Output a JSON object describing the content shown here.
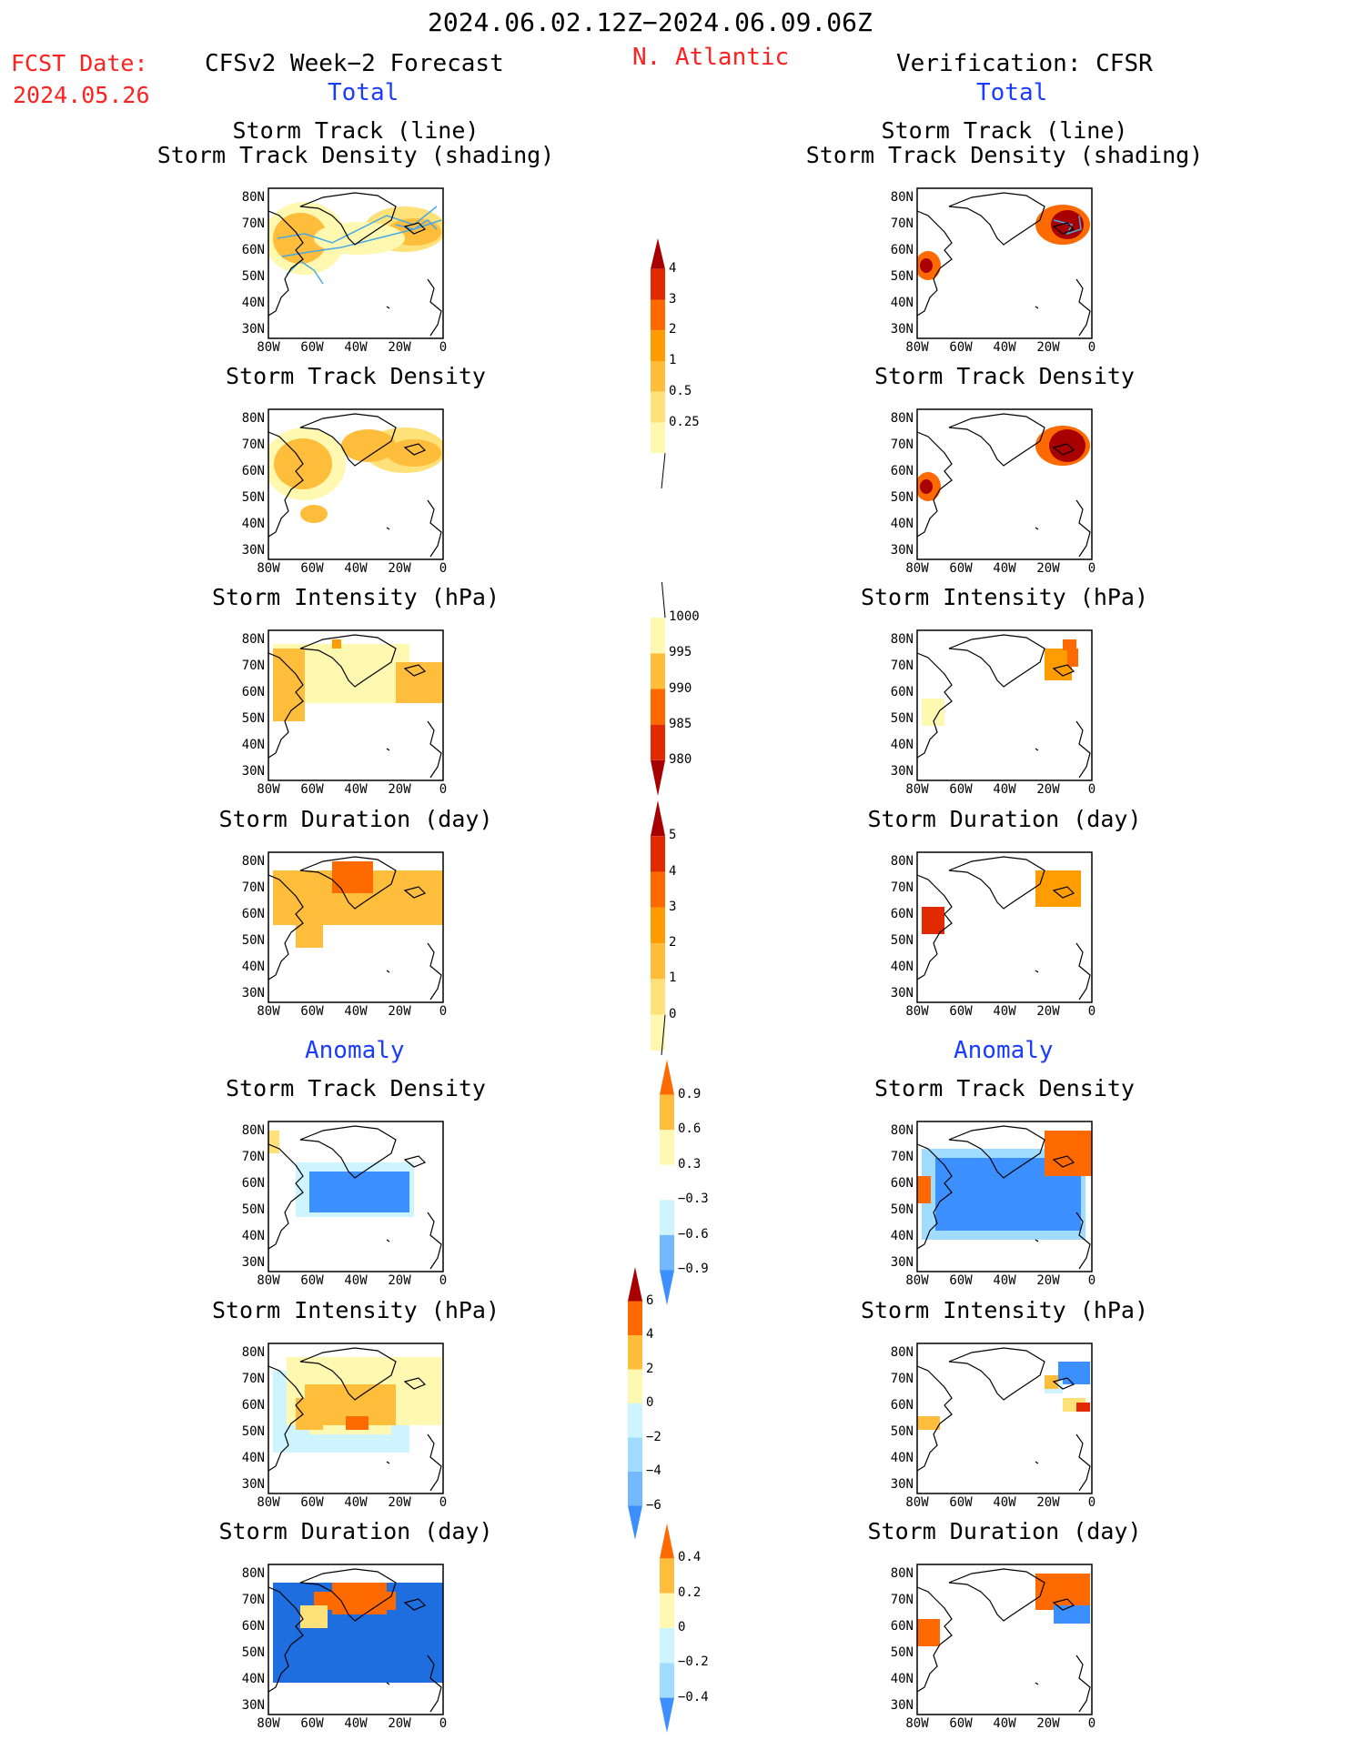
{
  "header": {
    "date_range": "2024.06.02.12Z−2024.06.09.06Z",
    "fcst_label": "FCST Date:",
    "fcst_date": "2024.05.26",
    "left_title": "CFSv2 Week−2 Forecast",
    "region": "N. Atlantic",
    "right_title": "Verification: CFSR",
    "total_left": "Total",
    "total_right": "Total",
    "anomaly_left": "Anomaly",
    "anomaly_right": "Anomaly"
  },
  "panel_titles": {
    "track_l1": "Storm Track (line)",
    "track_l2": "Storm Track Density (shading)",
    "density": "Storm Track Density",
    "intensity": "Storm Intensity (hPa)",
    "duration": "Storm Duration (day)"
  },
  "axes": {
    "lat_labels": [
      "80N",
      "70N",
      "60N",
      "50N",
      "40N",
      "30N"
    ],
    "lon_labels": [
      "80W",
      "60W",
      "40W",
      "20W",
      "0"
    ]
  },
  "colorbars": {
    "density_total": [
      "4",
      "3",
      "2",
      "1",
      "0.5",
      "0.25"
    ],
    "intensity_total": [
      "1000",
      "995",
      "990",
      "985",
      "980"
    ],
    "duration_total": [
      "5",
      "4",
      "3",
      "2",
      "1",
      "0"
    ],
    "density_anom": [
      "0.9",
      "0.6",
      "0.3",
      "−0.3",
      "−0.6",
      "−0.9"
    ],
    "intensity_anom": [
      "6",
      "4",
      "2",
      "0",
      "−2",
      "−4",
      "−6"
    ],
    "duration_anom": [
      "0.4",
      "0.2",
      "0",
      "−0.2",
      "−0.4"
    ]
  },
  "colors": {
    "warm": [
      "#fff8b0",
      "#ffe17a",
      "#ffbd3c",
      "#ff9d00",
      "#ff6a00",
      "#e22a00",
      "#a80000"
    ],
    "cool": [
      "#cdf4ff",
      "#9fdcff",
      "#74b8ff",
      "#3c8fff",
      "#1e6ee0"
    ],
    "track_line": "#46a8e8"
  }
}
